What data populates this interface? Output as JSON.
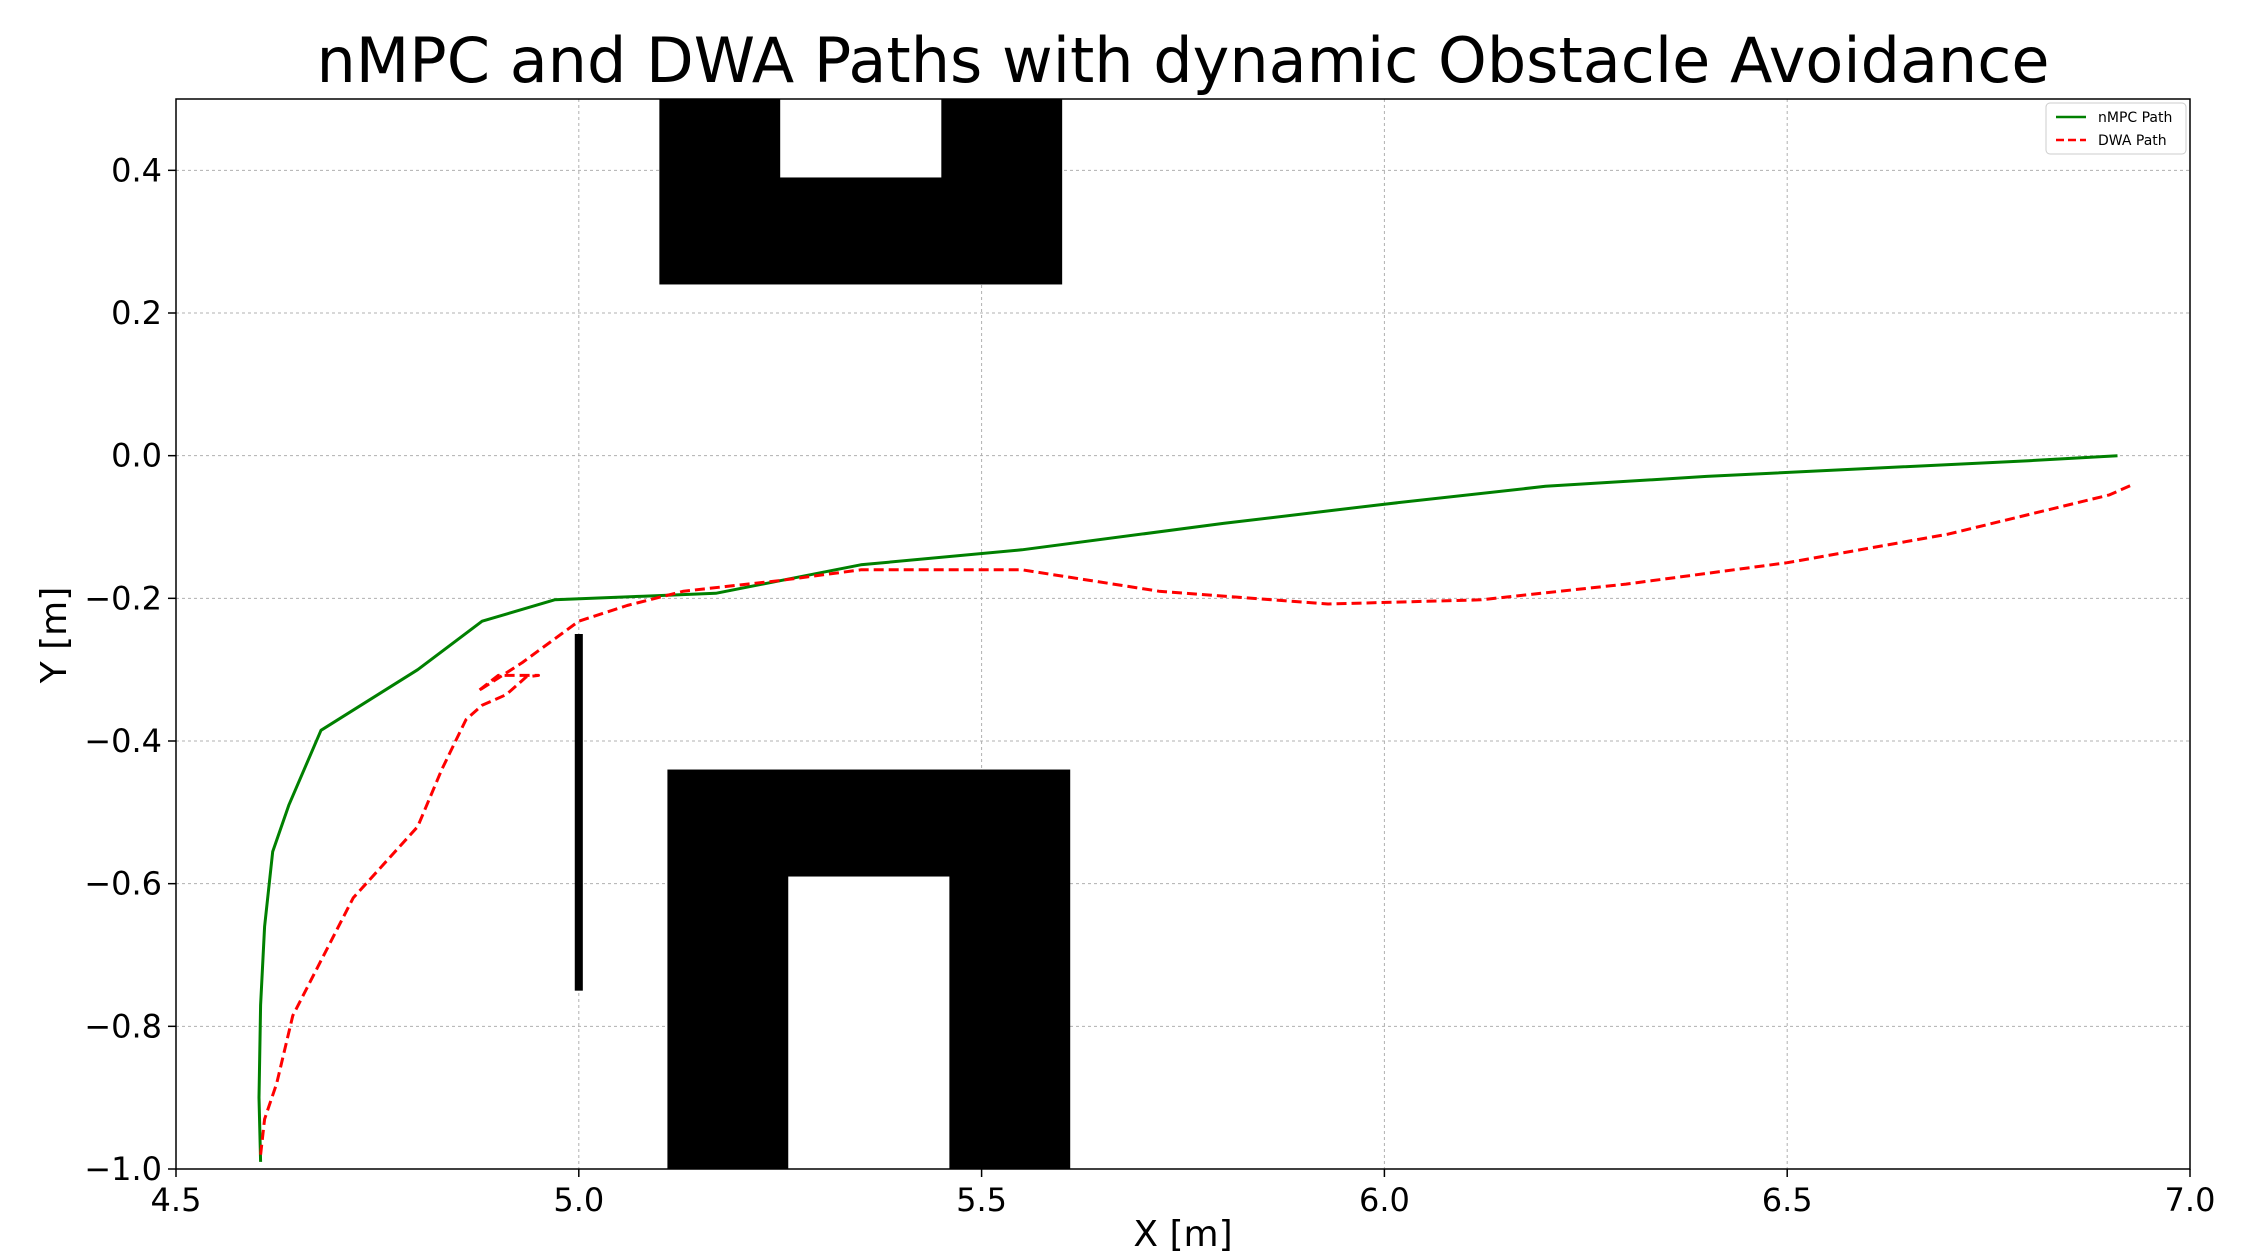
{
  "chart_data": {
    "type": "line",
    "title": "nMPC and DWA Paths with dynamic Obstacle Avoidance",
    "xlabel": "X [m]",
    "ylabel": "Y [m]",
    "xlim": [
      4.5,
      7.0
    ],
    "ylim": [
      -1.0,
      0.5
    ],
    "xticks": [
      4.5,
      5.0,
      5.5,
      6.0,
      6.5,
      7.0
    ],
    "xtick_labels": [
      "4.5",
      "5.0",
      "5.5",
      "6.0",
      "6.5",
      "7.0"
    ],
    "yticks": [
      -1.0,
      -0.8,
      -0.6,
      -0.4,
      -0.2,
      0.0,
      0.2,
      0.4
    ],
    "ytick_labels": [
      "−1.0",
      "−0.8",
      "−0.6",
      "−0.4",
      "−0.2",
      "0.0",
      "0.2",
      "0.4"
    ],
    "grid": true,
    "legend_position": "top-right",
    "series": [
      {
        "name": "nMPC Path",
        "color": "#008000",
        "style": "solid",
        "x": [
          4.605,
          4.603,
          4.605,
          4.61,
          4.62,
          4.64,
          4.68,
          4.8,
          4.88,
          4.97,
          5.08,
          5.17,
          5.35,
          5.55,
          5.8,
          6.0,
          6.2,
          6.4,
          6.6,
          6.8,
          6.91
        ],
        "y": [
          -0.99,
          -0.9,
          -0.77,
          -0.66,
          -0.555,
          -0.49,
          -0.385,
          -0.3,
          -0.232,
          -0.202,
          -0.197,
          -0.193,
          -0.153,
          -0.132,
          -0.095,
          -0.068,
          -0.043,
          -0.029,
          -0.018,
          -0.007,
          0.0
        ]
      },
      {
        "name": "DWA Path",
        "color": "#ff0000",
        "style": "dashed",
        "x": [
          4.605,
          4.61,
          4.625,
          4.645,
          4.72,
          4.8,
          4.83,
          4.86,
          4.88,
          4.91,
          4.935,
          4.95,
          4.9,
          4.875,
          4.93,
          5.0,
          5.06,
          5.13,
          5.25,
          5.35,
          5.55,
          5.72,
          5.93,
          6.12,
          6.3,
          6.5,
          6.7,
          6.9,
          6.93
        ],
        "y": [
          -0.98,
          -0.93,
          -0.88,
          -0.785,
          -0.62,
          -0.52,
          -0.44,
          -0.37,
          -0.35,
          -0.335,
          -0.31,
          -0.308,
          -0.308,
          -0.33,
          -0.29,
          -0.232,
          -0.21,
          -0.19,
          -0.175,
          -0.16,
          -0.16,
          -0.19,
          -0.208,
          -0.202,
          -0.18,
          -0.15,
          -0.11,
          -0.055,
          -0.04
        ]
      }
    ],
    "obstacles": [
      {
        "x": 5.1,
        "y": 0.24,
        "w": 0.5,
        "h": 0.26,
        "fill": "#000000"
      },
      {
        "x": 5.25,
        "y": 0.39,
        "w": 0.2,
        "h": 0.11,
        "fill": "#ffffff"
      },
      {
        "x": 5.11,
        "y": -1.0,
        "w": 0.5,
        "h": 0.56,
        "fill": "#000000"
      },
      {
        "x": 5.26,
        "y": -1.0,
        "w": 0.2,
        "h": 0.41,
        "fill": "#ffffff"
      },
      {
        "x": 4.995,
        "y": -0.75,
        "w": 0.01,
        "h": 0.5,
        "fill": "#000000"
      }
    ]
  }
}
